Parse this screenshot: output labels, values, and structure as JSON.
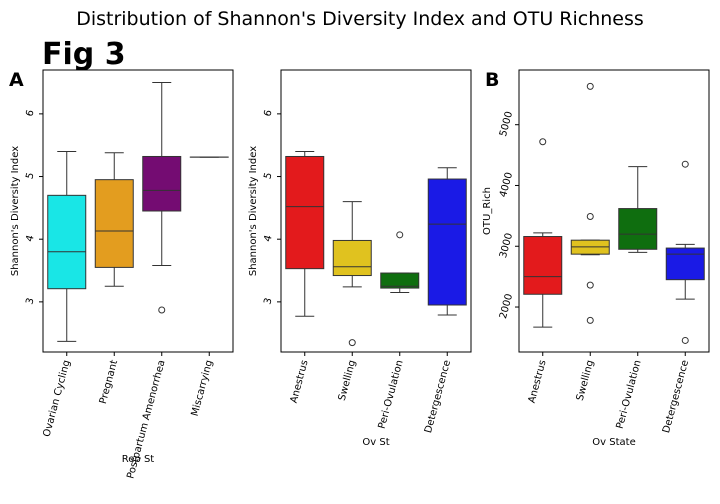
{
  "figure": {
    "suptitle": "Distribution of Shannon's Diversity Index and OTU Richness",
    "fig_label": "Fig 3",
    "panel_letters": [
      "A",
      "B"
    ]
  },
  "chart_data": [
    {
      "type": "box",
      "xlabel": "Rep St",
      "ylabel": "Shannon's Diversity Index",
      "categories": [
        "Ovarian Cycling",
        "Pregnant",
        "Postpartum Amenorrhea",
        "Miscarrying"
      ],
      "ylim": [
        2.2,
        6.7
      ],
      "yticks": [
        3,
        4,
        5,
        6
      ],
      "boxes": [
        {
          "category": "Ovarian Cycling",
          "color": "#19e6e6",
          "whislo": 2.37,
          "q1": 3.21,
          "med": 3.8,
          "q3": 4.7,
          "whishi": 5.4,
          "fliers": []
        },
        {
          "category": "Pregnant",
          "color": "#e39d1f",
          "whislo": 3.25,
          "q1": 3.55,
          "med": 4.13,
          "q3": 4.95,
          "whishi": 5.38,
          "fliers": []
        },
        {
          "category": "Postpartum Amenorrhea",
          "color": "#740c72",
          "whislo": 3.58,
          "q1": 4.45,
          "med": 4.78,
          "q3": 5.32,
          "whishi": 6.5,
          "fliers": [
            2.87
          ]
        },
        {
          "category": "Miscarrying",
          "color": "#740c72",
          "whislo": 5.31,
          "q1": 5.31,
          "med": 5.31,
          "q3": 5.31,
          "whishi": 5.31,
          "fliers": []
        }
      ]
    },
    {
      "type": "box",
      "xlabel": "Ov St",
      "ylabel": "Shannon's Diversity Index",
      "categories": [
        "Anestrus",
        "Swelling",
        "Peri-Ovulation",
        "Detergescence"
      ],
      "ylim": [
        2.2,
        6.7
      ],
      "yticks": [
        3,
        4,
        5,
        6
      ],
      "boxes": [
        {
          "category": "Anestrus",
          "color": "#e31a1c",
          "whislo": 2.77,
          "q1": 3.53,
          "med": 4.52,
          "q3": 5.32,
          "whishi": 5.4,
          "fliers": []
        },
        {
          "category": "Swelling",
          "color": "#e0c21f",
          "whislo": 3.24,
          "q1": 3.42,
          "med": 3.56,
          "q3": 3.98,
          "whishi": 4.6,
          "fliers": [
            2.35
          ]
        },
        {
          "category": "Peri-Ovulation",
          "color": "#0f6e0f",
          "whislo": 3.15,
          "q1": 3.22,
          "med": 3.25,
          "q3": 3.46,
          "whishi": 3.46,
          "fliers": [
            4.07
          ]
        },
        {
          "category": "Detergescence",
          "color": "#1a1ae6",
          "whislo": 2.79,
          "q1": 2.95,
          "med": 4.24,
          "q3": 4.96,
          "whishi": 5.14,
          "fliers": []
        }
      ]
    },
    {
      "type": "box",
      "xlabel": "Ov State",
      "ylabel": "OTU_Rich",
      "categories": [
        "Anestrus",
        "Swelling",
        "Peri-Ovulation",
        "Detergescence"
      ],
      "ylim": [
        1260,
        5900
      ],
      "yticks": [
        2000,
        3000,
        4000,
        5000
      ],
      "boxes": [
        {
          "category": "Anestrus",
          "color": "#e31a1c",
          "whislo": 1670,
          "q1": 2210,
          "med": 2500,
          "q3": 3160,
          "whishi": 3220,
          "fliers": [
            4720
          ]
        },
        {
          "category": "Swelling",
          "color": "#e0c21f",
          "whislo": 2860,
          "q1": 2870,
          "med": 2990,
          "q3": 3100,
          "whishi": 3100,
          "fliers": [
            5630,
            3490,
            2360,
            1780
          ]
        },
        {
          "category": "Peri-Ovulation",
          "color": "#0f6e0f",
          "whislo": 2900,
          "q1": 2950,
          "med": 3200,
          "q3": 3620,
          "whishi": 4310,
          "fliers": []
        },
        {
          "category": "Detergescence",
          "color": "#1a1ae6",
          "whislo": 2130,
          "q1": 2450,
          "med": 2870,
          "q3": 2970,
          "whishi": 3030,
          "fliers": [
            4350,
            1450
          ]
        }
      ]
    }
  ]
}
